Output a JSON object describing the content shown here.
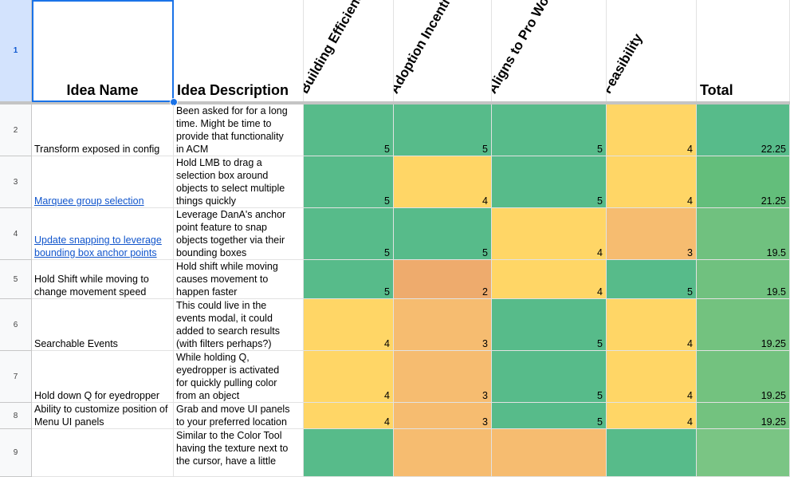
{
  "header": {
    "row_number": "1",
    "idea_name": "Idea Name",
    "idea_description": "Idea Description",
    "criteria": [
      "Building Efficiency",
      "Adoption Incentive",
      "Aligns to Pro Workflow",
      "Feasibility"
    ],
    "total": "Total"
  },
  "colors": {
    "green": "#57bb8a",
    "yellow": "#ffd666",
    "light_orange": "#f6bc70",
    "orange": "#eeab6d",
    "total_green": "#63be7b",
    "total_light_green": "#70c17f",
    "total_soft_green": "#73c27f",
    "total_pale_green": "#7ac584"
  },
  "rows": [
    {
      "n": "2",
      "name": "Transform exposed in config",
      "link": false,
      "desc": [
        "Been asked for for a long",
        "time.  Might be time to",
        "provide that functionality",
        "in ACM"
      ],
      "scores": [
        "5",
        "5",
        "5",
        "4"
      ],
      "total": "22.25"
    },
    {
      "n": "3",
      "name": "Marquee group selection",
      "link": true,
      "desc": [
        "Hold LMB to drag a",
        "selection box around",
        "objects to select multiple",
        "things quickly"
      ],
      "scores": [
        "5",
        "4",
        "5",
        "4"
      ],
      "total": "21.25"
    },
    {
      "n": "4",
      "name": "Update snapping to leverage bounding box anchor points",
      "link": true,
      "desc": [
        "Leverage DanA's anchor",
        "point feature to snap",
        "objects together via their",
        "bounding boxes"
      ],
      "scores": [
        "5",
        "5",
        "4",
        "3"
      ],
      "total": "19.5"
    },
    {
      "n": "5",
      "name": "Hold Shift while moving to change movement speed",
      "link": false,
      "desc": [
        "Hold shift while moving",
        "causes movement to",
        "happen faster"
      ],
      "scores": [
        "5",
        "2",
        "4",
        "5"
      ],
      "total": "19.5"
    },
    {
      "n": "6",
      "name": "Searchable Events",
      "link": false,
      "desc": [
        "This could live in the",
        "events modal, it could",
        "added to search results",
        "(with filters perhaps?)"
      ],
      "scores": [
        "4",
        "3",
        "5",
        "4"
      ],
      "total": "19.25"
    },
    {
      "n": "7",
      "name": "Hold down Q for eyedropper",
      "link": false,
      "desc": [
        "While holding Q,",
        "eyedropper is activated",
        "for quickly pulling color",
        "from an object"
      ],
      "scores": [
        "4",
        "3",
        "5",
        "4"
      ],
      "total": "19.25"
    },
    {
      "n": "8",
      "name": "Ability to customize position of Menu UI panels",
      "link": false,
      "desc": [
        "Grab and move UI panels",
        "to your preferred location"
      ],
      "scores": [
        "4",
        "3",
        "5",
        "4"
      ],
      "total": "19.25"
    },
    {
      "n": "9",
      "name": "",
      "link": false,
      "desc": [
        "Similar to the Color Tool",
        "having the texture next to",
        "the cursor, have a little"
      ],
      "scores": [
        "",
        "",
        "",
        ""
      ],
      "total": ""
    }
  ]
}
